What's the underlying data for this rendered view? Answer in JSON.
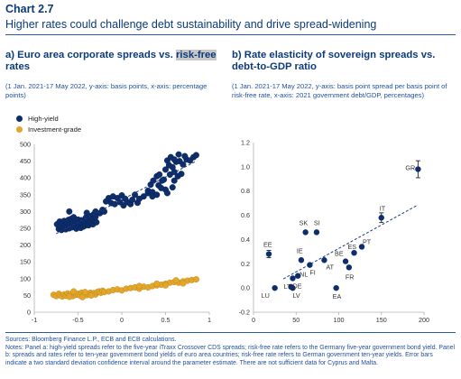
{
  "header": {
    "chart_number": "Chart 2.7",
    "title": "Higher rates could challenge debt sustainability and drive spread-widening"
  },
  "panel_a": {
    "title_prefix": "a) Euro area corporate spreads vs. ",
    "title_highlight": "risk-free",
    "title_suffix": "rates",
    "subtitle": "(1 Jan. 2021-17 May 2022, y-axis: basis points, x-axis: percentage points)"
  },
  "panel_b": {
    "title": "b) Rate elasticity of sovereign spreads vs. debt-to-GDP ratio",
    "subtitle": "(1 Jan. 2021-17 May 2022, y-axis: basis point spread per basis point of risk-free rate, x-axis: 2021 government debt/GDP, percentages)"
  },
  "footer": {
    "source": "Sources: Bloomberg Finance L.P., ECB and ECB calculations.",
    "notes": "Notes: Panel a: high-yield spreads refer to the five-year iTraxx Crossover CDS spreads; risk-free rate refers to the Germany five-year government bond yield. Panel b: spreads and rates refer to ten-year government bond yields of euro area countries; risk-free rate refers to German government ten-year yields. Error bars indicate a two standard deviation confidence interval around the parameter estimate. There are not sufficient data for Cyprus and Malta."
  },
  "colors": {
    "high_yield": "#0e2d6b",
    "investment_grade": "#e2a62a",
    "title_blue": "#0b3a7a",
    "axis_text": "#333333",
    "trend": "#1a3a80"
  },
  "chart_data": [
    {
      "type": "scatter",
      "panel": "a",
      "title": "Euro area corporate spreads vs. risk-free rates",
      "xlim": [
        -1,
        1
      ],
      "ylim": [
        0,
        500
      ],
      "xticks": [
        -1,
        -0.5,
        0,
        0.5,
        1
      ],
      "yticks": [
        0,
        50,
        100,
        150,
        200,
        250,
        300,
        350,
        400,
        450,
        500
      ],
      "xtick_labels": [
        "-1",
        "-0.5",
        "0",
        "0.5",
        "1"
      ],
      "ytick_labels": [
        "0",
        "50",
        "100",
        "150",
        "200",
        "250",
        "300",
        "350",
        "400",
        "450",
        "500"
      ],
      "grid": false,
      "legend_position": "top-left",
      "series": [
        {
          "name": "High-yield",
          "marker": "circle",
          "trendline": true,
          "points": [
            [
              -0.74,
              262
            ],
            [
              -0.72,
              248
            ],
            [
              -0.71,
              270
            ],
            [
              -0.7,
              255
            ],
            [
              -0.69,
              245
            ],
            [
              -0.68,
              265
            ],
            [
              -0.67,
              250
            ],
            [
              -0.66,
              272
            ],
            [
              -0.65,
              258
            ],
            [
              -0.64,
              247
            ],
            [
              -0.63,
              268
            ],
            [
              -0.62,
              254
            ],
            [
              -0.61,
              275
            ],
            [
              -0.6,
              250
            ],
            [
              -0.59,
              262
            ],
            [
              -0.58,
              278
            ],
            [
              -0.57,
              253
            ],
            [
              -0.56,
              266
            ],
            [
              -0.55,
              283
            ],
            [
              -0.54,
              257
            ],
            [
              -0.53,
              271
            ],
            [
              -0.52,
              249
            ],
            [
              -0.51,
              263
            ],
            [
              -0.5,
              276
            ],
            [
              -0.49,
              256
            ],
            [
              -0.48,
              268
            ],
            [
              -0.47,
              251
            ],
            [
              -0.46,
              274
            ],
            [
              -0.45,
              262
            ],
            [
              -0.44,
              255
            ],
            [
              -0.43,
              269
            ],
            [
              -0.42,
              258
            ],
            [
              -0.41,
              282
            ],
            [
              -0.4,
              262
            ],
            [
              -0.39,
              275
            ],
            [
              -0.38,
              259
            ],
            [
              -0.37,
              268
            ],
            [
              -0.36,
              286
            ],
            [
              -0.35,
              266
            ],
            [
              -0.34,
              278
            ],
            [
              -0.33,
              262
            ],
            [
              -0.32,
              292
            ],
            [
              -0.31,
              272
            ],
            [
              -0.3,
              284
            ],
            [
              -0.29,
              268
            ],
            [
              -0.6,
              300
            ],
            [
              -0.4,
              296
            ],
            [
              -0.3,
              300
            ],
            [
              -0.25,
              295
            ],
            [
              -0.22,
              305
            ],
            [
              -0.2,
              300
            ],
            [
              -0.18,
              330
            ],
            [
              -0.15,
              340
            ],
            [
              -0.12,
              325
            ],
            [
              -0.1,
              345
            ],
            [
              -0.08,
              322
            ],
            [
              -0.05,
              340
            ],
            [
              -0.02,
              328
            ],
            [
              0.0,
              348
            ],
            [
              0.02,
              318
            ],
            [
              0.04,
              338
            ],
            [
              0.06,
              328
            ],
            [
              0.1,
              322
            ],
            [
              0.12,
              335
            ],
            [
              0.15,
              350
            ],
            [
              0.18,
              326
            ],
            [
              0.2,
              338
            ],
            [
              0.25,
              345
            ],
            [
              0.3,
              355
            ],
            [
              0.33,
              380
            ],
            [
              0.36,
              392
            ],
            [
              0.4,
              405
            ],
            [
              0.43,
              410
            ],
            [
              0.46,
              392
            ],
            [
              0.5,
              425
            ],
            [
              0.54,
              438
            ],
            [
              0.58,
              432
            ],
            [
              0.62,
              448
            ],
            [
              0.66,
              450
            ],
            [
              0.7,
              440
            ],
            [
              0.74,
              455
            ],
            [
              0.78,
              452
            ],
            [
              0.82,
              462
            ],
            [
              0.85,
              468
            ],
            [
              0.3,
              362
            ],
            [
              0.35,
              358
            ],
            [
              0.42,
              378
            ],
            [
              0.48,
              395
            ],
            [
              0.55,
              410
            ],
            [
              0.6,
              418
            ],
            [
              0.52,
              452
            ],
            [
              0.56,
              462
            ],
            [
              0.6,
              455
            ],
            [
              0.65,
              470
            ],
            [
              0.72,
              465
            ],
            [
              0.6,
              392
            ],
            [
              0.64,
              405
            ],
            [
              0.68,
              412
            ],
            [
              0.5,
              365
            ],
            [
              0.45,
              370
            ],
            [
              0.4,
              350
            ],
            [
              0.52,
              355
            ],
            [
              0.58,
              372
            ],
            [
              0.35,
              345
            ]
          ]
        },
        {
          "name": "Investment-grade",
          "marker": "circle",
          "trendline": false,
          "points": [
            [
              -0.78,
              52
            ],
            [
              -0.75,
              48
            ],
            [
              -0.72,
              55
            ],
            [
              -0.7,
              50
            ],
            [
              -0.68,
              47
            ],
            [
              -0.66,
              53
            ],
            [
              -0.64,
              49
            ],
            [
              -0.62,
              56
            ],
            [
              -0.6,
              51
            ],
            [
              -0.58,
              54
            ],
            [
              -0.56,
              48
            ],
            [
              -0.54,
              57
            ],
            [
              -0.52,
              52
            ],
            [
              -0.5,
              55
            ],
            [
              -0.48,
              50
            ],
            [
              -0.46,
              58
            ],
            [
              -0.44,
              53
            ],
            [
              -0.42,
              56
            ],
            [
              -0.4,
              51
            ],
            [
              -0.38,
              55
            ],
            [
              -0.36,
              58
            ],
            [
              -0.34,
              54
            ],
            [
              -0.32,
              57
            ],
            [
              -0.3,
              53
            ],
            [
              -0.28,
              60
            ],
            [
              -0.26,
              62
            ],
            [
              -0.24,
              58
            ],
            [
              -0.22,
              64
            ],
            [
              -0.2,
              60
            ],
            [
              -0.15,
              62
            ],
            [
              -0.1,
              66
            ],
            [
              -0.05,
              68
            ],
            [
              0.0,
              65
            ],
            [
              0.05,
              70
            ],
            [
              0.1,
              72
            ],
            [
              0.15,
              74
            ],
            [
              0.2,
              70
            ],
            [
              0.25,
              76
            ],
            [
              0.3,
              74
            ],
            [
              0.35,
              78
            ],
            [
              0.4,
              80
            ],
            [
              0.45,
              82
            ],
            [
              0.5,
              85
            ],
            [
              0.55,
              88
            ],
            [
              0.6,
              90
            ],
            [
              0.65,
              88
            ],
            [
              0.7,
              92
            ],
            [
              0.75,
              94
            ],
            [
              0.8,
              96
            ],
            [
              0.85,
              98
            ],
            [
              -0.6,
              46
            ],
            [
              -0.45,
              45
            ],
            [
              -0.35,
              50
            ],
            [
              0.2,
              78
            ],
            [
              0.4,
              85
            ],
            [
              0.62,
              95
            ],
            [
              0.7,
              86
            ],
            [
              0.5,
              80
            ],
            [
              -0.55,
              62
            ],
            [
              -0.42,
              60
            ]
          ]
        }
      ]
    },
    {
      "type": "scatter",
      "panel": "b",
      "title": "Rate elasticity of sovereign spreads vs. debt-to-GDP ratio",
      "xlim": [
        0,
        200
      ],
      "ylim": [
        -0.2,
        1.2
      ],
      "xticks": [
        0,
        50,
        100,
        150,
        200
      ],
      "yticks": [
        -0.2,
        0.0,
        0.2,
        0.4,
        0.6,
        0.8,
        1.0,
        1.2
      ],
      "xtick_labels": [
        "0",
        "50",
        "100",
        "150",
        "200"
      ],
      "ytick_labels": [
        "-0.2",
        "0.0",
        "0.2",
        "0.4",
        "0.6",
        "0.8",
        "1.0",
        "1.2"
      ],
      "grid": false,
      "trendline": true,
      "points": [
        {
          "label": "GR",
          "x": 193,
          "y": 0.98,
          "err": 0.07
        },
        {
          "label": "IT",
          "x": 150,
          "y": 0.58,
          "err": 0.04
        },
        {
          "label": "PT",
          "x": 127,
          "y": 0.34
        },
        {
          "label": "ES",
          "x": 118,
          "y": 0.29
        },
        {
          "label": "BE",
          "x": 108,
          "y": 0.22
        },
        {
          "label": "FR",
          "x": 112,
          "y": 0.17
        },
        {
          "label": "AT",
          "x": 83,
          "y": 0.23
        },
        {
          "label": "FI",
          "x": 66,
          "y": 0.19
        },
        {
          "label": "IE",
          "x": 56,
          "y": 0.23
        },
        {
          "label": "SK",
          "x": 61,
          "y": 0.46
        },
        {
          "label": "SI",
          "x": 74,
          "y": 0.46
        },
        {
          "label": "EE",
          "x": 18,
          "y": 0.28,
          "err": 0.03
        },
        {
          "label": "LU",
          "x": 25,
          "y": 0.0
        },
        {
          "label": "LT",
          "x": 44,
          "y": 0.01
        },
        {
          "label": "LV",
          "x": 46,
          "y": 0.0
        },
        {
          "label": "NL",
          "x": 52,
          "y": 0.1
        },
        {
          "label": "DE",
          "x": 46,
          "y": 0.08
        },
        {
          "label": "EA",
          "x": 97,
          "y": 0.0
        }
      ],
      "point_labels": [
        {
          "text": "GR",
          "dx": -14,
          "dy": 1
        },
        {
          "text": "IT",
          "dx": -2,
          "dy": -8
        },
        {
          "text": "PT",
          "dx": 1,
          "dy": -3
        },
        {
          "text": "ES",
          "dx": -7,
          "dy": -4
        },
        {
          "text": "BE",
          "dx": -12,
          "dy": -6
        },
        {
          "text": "FR",
          "dx": -4,
          "dy": 13
        },
        {
          "text": "AT",
          "dx": 2,
          "dy": 10
        },
        {
          "text": "FI",
          "dx": 0,
          "dy": 11
        },
        {
          "text": "IE",
          "dx": -5,
          "dy": -8
        },
        {
          "text": "SK",
          "dx": -7,
          "dy": -8
        },
        {
          "text": "SI",
          "dx": -3,
          "dy": -8
        },
        {
          "text": "EE",
          "dx": -6,
          "dy": -8
        },
        {
          "text": "LU",
          "dx": -15,
          "dy": 11
        },
        {
          "text": "LT",
          "dx": -8,
          "dy": 2
        },
        {
          "text": "LV",
          "dx": 0,
          "dy": 11
        },
        {
          "text": "NL",
          "dx": 2,
          "dy": 1
        },
        {
          "text": "DE",
          "dx": 0,
          "dy": 11
        },
        {
          "text": "EA",
          "dx": -4,
          "dy": 12
        }
      ]
    }
  ]
}
